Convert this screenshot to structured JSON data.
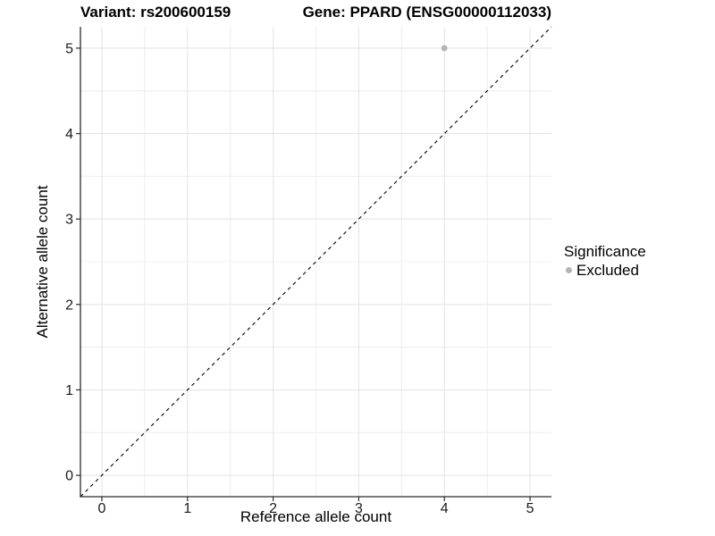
{
  "chart_data": {
    "type": "scatter",
    "titles": {
      "left": "Variant: rs200600159",
      "right": "Gene: PPARD (ENSG00000112033)"
    },
    "xlabel": "Reference allele count",
    "ylabel": "Alternative allele count",
    "xlim": [
      -0.25,
      5.25
    ],
    "ylim": [
      -0.25,
      5.25
    ],
    "xticks": [
      0,
      1,
      2,
      3,
      4,
      5
    ],
    "yticks": [
      0,
      1,
      2,
      3,
      4,
      5
    ],
    "grid": "on",
    "minor_gridlines": true,
    "points": [
      {
        "x": 4,
        "y": 5,
        "series": "Excluded"
      }
    ],
    "reference_line": {
      "type": "identity",
      "style": "dashed",
      "color": "#000000"
    },
    "legend": {
      "position": "right",
      "title": "Significance",
      "items": [
        {
          "label": "Excluded",
          "color": "#b4b4b4"
        }
      ]
    },
    "colors": {
      "point": "#b4b4b4",
      "grid_major": "#e3e3e3",
      "grid_minor": "#f0f0f0",
      "axis": "#2a2a2a",
      "tick_label": "#1a1a1a"
    },
    "point_radius": 3.4
  }
}
